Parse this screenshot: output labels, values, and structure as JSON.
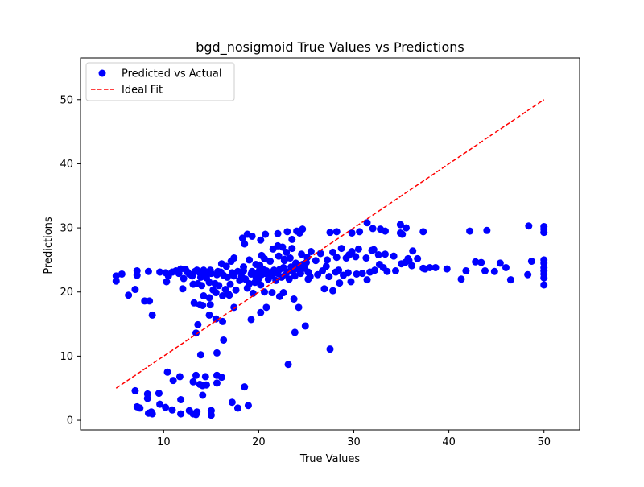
{
  "chart_data": {
    "type": "scatter",
    "title": "bgd_nosigmoid True Values vs Predictions",
    "xlabel": "True Values",
    "ylabel": "Predictions",
    "xlim": [
      1.25,
      53.75
    ],
    "ylim": [
      -1.5,
      56.5
    ],
    "xticks": [
      "10",
      "20",
      "30",
      "40",
      "50"
    ],
    "yticks": [
      "0",
      "10",
      "20",
      "30",
      "40",
      "50"
    ],
    "grid": false,
    "legend_position": "upper-left",
    "series": [
      {
        "name": "Predicted vs Actual",
        "type": "scatter",
        "color": "#0000ff",
        "points": [
          [
            5,
            22.5
          ],
          [
            5,
            21.7
          ],
          [
            5.6,
            22.8
          ],
          [
            6.3,
            19.5
          ],
          [
            7,
            20.4
          ],
          [
            7.2,
            23.3
          ],
          [
            7.2,
            22.6
          ],
          [
            8,
            18.6
          ],
          [
            8.4,
            23.2
          ],
          [
            8.5,
            18.6
          ],
          [
            8.8,
            16.4
          ],
          [
            7,
            4.6
          ],
          [
            7.2,
            2.1
          ],
          [
            7.5,
            1.9
          ],
          [
            8.3,
            4.1
          ],
          [
            8.3,
            3.4
          ],
          [
            8.4,
            1.1
          ],
          [
            8.7,
            1.3
          ],
          [
            8.8,
            1.0
          ],
          [
            9.5,
            4.2
          ],
          [
            9.6,
            2.5
          ],
          [
            10.2,
            2.0
          ],
          [
            10.4,
            7.5
          ],
          [
            10.9,
            1.6
          ],
          [
            11,
            6.2
          ],
          [
            11.7,
            6.8
          ],
          [
            11.8,
            1.0
          ],
          [
            11.8,
            3.2
          ],
          [
            12.7,
            1.5
          ],
          [
            13.1,
            6.0
          ],
          [
            13.1,
            1.0
          ],
          [
            13.4,
            7.0
          ],
          [
            13.4,
            0.9
          ],
          [
            13.5,
            1.3
          ],
          [
            13.8,
            5.6
          ],
          [
            14.1,
            3.9
          ],
          [
            14.1,
            5.4
          ],
          [
            14.4,
            6.8
          ],
          [
            14.5,
            5.5
          ],
          [
            15,
            1.5
          ],
          [
            15,
            0.8
          ],
          [
            15.6,
            5.8
          ],
          [
            15.6,
            7.0
          ],
          [
            16.1,
            6.7
          ],
          [
            17.2,
            2.8
          ],
          [
            17.8,
            1.9
          ],
          [
            18.5,
            5.2
          ],
          [
            18.9,
            2.3
          ],
          [
            9.6,
            23.1
          ],
          [
            10.2,
            23.0
          ],
          [
            10.3,
            21.6
          ],
          [
            10.5,
            22.5
          ],
          [
            10.9,
            23.1
          ],
          [
            11.3,
            23.3
          ],
          [
            11.6,
            22.9
          ],
          [
            11.8,
            23.6
          ],
          [
            12,
            20.5
          ],
          [
            12.1,
            22.1
          ],
          [
            12.3,
            23.5
          ],
          [
            12.5,
            23.1
          ],
          [
            12.7,
            22.8
          ],
          [
            13,
            22.5
          ],
          [
            13.1,
            21.2
          ],
          [
            13.3,
            23.2
          ],
          [
            13.5,
            23.4
          ],
          [
            13.6,
            21.3
          ],
          [
            13.8,
            23.0
          ],
          [
            13.9,
            22.3
          ],
          [
            14,
            21.0
          ],
          [
            14.2,
            23.4
          ],
          [
            14.4,
            23.0
          ],
          [
            14.5,
            22.2
          ],
          [
            14.8,
            21.5
          ],
          [
            14.9,
            23.4
          ],
          [
            15,
            22.9
          ],
          [
            15.2,
            20.3
          ],
          [
            15.4,
            21.3
          ],
          [
            15.6,
            22.7
          ],
          [
            15.7,
            23.2
          ],
          [
            15.8,
            21.0
          ],
          [
            16,
            23.1
          ],
          [
            16.3,
            22.6
          ],
          [
            16.5,
            20.4
          ],
          [
            16.7,
            22.3
          ],
          [
            17,
            21.2
          ],
          [
            17.2,
            23.0
          ],
          [
            17.4,
            22.5
          ],
          [
            17.6,
            20.3
          ],
          [
            17.8,
            23.2
          ],
          [
            18,
            21.8
          ],
          [
            18.2,
            22.4
          ],
          [
            18.4,
            23.3
          ],
          [
            18.6,
            22.0
          ],
          [
            18.8,
            20.6
          ],
          [
            19,
            21.3
          ],
          [
            19.2,
            22.8
          ],
          [
            19.3,
            23.2
          ],
          [
            19.4,
            19.8
          ],
          [
            19.6,
            21.5
          ],
          [
            19.7,
            22.4
          ],
          [
            19.9,
            23.0
          ],
          [
            20,
            22.1
          ],
          [
            20.1,
            23.5
          ],
          [
            20.2,
            21.1
          ],
          [
            20.3,
            22.7
          ],
          [
            20.4,
            23.6
          ],
          [
            20.6,
            20.0
          ],
          [
            20.7,
            22.9
          ],
          [
            20.8,
            23.3
          ],
          [
            21,
            22.0
          ],
          [
            21.2,
            23.0
          ],
          [
            21.4,
            22.5
          ],
          [
            21.6,
            23.4
          ],
          [
            21.8,
            21.8
          ],
          [
            22,
            22.9
          ],
          [
            22.2,
            23.5
          ],
          [
            22.4,
            22.3
          ],
          [
            22.6,
            23.8
          ],
          [
            22.8,
            22.7
          ],
          [
            23,
            23.1
          ],
          [
            23.2,
            22.0
          ],
          [
            23.4,
            23.9
          ],
          [
            23.6,
            23.3
          ],
          [
            23.8,
            22.5
          ],
          [
            24,
            24.0
          ],
          [
            24.2,
            23.5
          ],
          [
            24.4,
            22.9
          ],
          [
            24.6,
            24.3
          ],
          [
            24.8,
            23.7
          ],
          [
            25,
            24.6
          ],
          [
            25.2,
            23.1
          ],
          [
            25.4,
            22.4
          ],
          [
            14.2,
            19.4
          ],
          [
            14.1,
            17.9
          ],
          [
            14.8,
            19.1
          ],
          [
            14.9,
            18.0
          ],
          [
            15.5,
            19.9
          ],
          [
            16.2,
            19.4
          ],
          [
            16.9,
            19.5
          ],
          [
            17.4,
            17.6
          ],
          [
            13.2,
            18.3
          ],
          [
            13.8,
            18.0
          ],
          [
            13.6,
            14.9
          ],
          [
            13.4,
            13.6
          ],
          [
            13.9,
            10.2
          ],
          [
            14.8,
            16.4
          ],
          [
            15.5,
            15.8
          ],
          [
            15.6,
            10.5
          ],
          [
            16.2,
            15.4
          ],
          [
            16.3,
            12.5
          ],
          [
            16.8,
            19.7
          ],
          [
            19.2,
            15.7
          ],
          [
            20.2,
            16.8
          ],
          [
            20.8,
            17.6
          ],
          [
            21.4,
            19.9
          ],
          [
            22.2,
            19.3
          ],
          [
            22.6,
            19.9
          ],
          [
            23.7,
            18.9
          ],
          [
            24.2,
            17.6
          ],
          [
            23.8,
            13.7
          ],
          [
            24.9,
            14.7
          ],
          [
            23.1,
            8.7
          ],
          [
            27.5,
            11.1
          ],
          [
            16.1,
            24.4
          ],
          [
            16.6,
            24.0
          ],
          [
            17.1,
            24.8
          ],
          [
            17.4,
            25.3
          ],
          [
            18.4,
            23.9
          ],
          [
            19,
            25.0
          ],
          [
            19.7,
            24.3
          ],
          [
            20.3,
            25.7
          ],
          [
            20.6,
            25.2
          ],
          [
            21.2,
            24.8
          ],
          [
            22.1,
            25.6
          ],
          [
            22.7,
            24.9
          ],
          [
            23.3,
            25.3
          ],
          [
            23.5,
            26.8
          ],
          [
            23.9,
            24.5
          ],
          [
            24.5,
            25.9
          ],
          [
            25.1,
            25.4
          ],
          [
            25.5,
            26.3
          ],
          [
            22,
            27.2
          ],
          [
            22.5,
            27.0
          ],
          [
            22.9,
            26.2
          ],
          [
            21.5,
            26.7
          ],
          [
            18.3,
            28.4
          ],
          [
            18.5,
            27.5
          ],
          [
            18.8,
            29.0
          ],
          [
            19.3,
            28.7
          ],
          [
            20.2,
            28.1
          ],
          [
            20.7,
            29.0
          ],
          [
            22,
            29.1
          ],
          [
            23,
            29.4
          ],
          [
            23.5,
            28.2
          ],
          [
            24,
            29.5
          ],
          [
            24.3,
            29.2
          ],
          [
            24.6,
            29.8
          ],
          [
            22.7,
            25.1
          ],
          [
            20.1,
            24.2
          ],
          [
            25.2,
            22.0
          ],
          [
            26.2,
            22.7
          ],
          [
            26.7,
            23.3
          ],
          [
            27.1,
            24.0
          ],
          [
            27.4,
            22.4
          ],
          [
            27.8,
            20.2
          ],
          [
            28.1,
            23.1
          ],
          [
            28.5,
            21.4
          ],
          [
            28.9,
            22.6
          ],
          [
            29.4,
            23.0
          ],
          [
            29.7,
            21.6
          ],
          [
            30.3,
            22.8
          ],
          [
            30.9,
            22.9
          ],
          [
            31.4,
            21.9
          ],
          [
            31.7,
            23.1
          ],
          [
            32.2,
            23.4
          ],
          [
            32.7,
            24.3
          ],
          [
            33.1,
            23.8
          ],
          [
            33.5,
            23.2
          ],
          [
            34.4,
            23.3
          ],
          [
            35,
            24.4
          ],
          [
            35.4,
            24.6
          ],
          [
            35.8,
            24.9
          ],
          [
            26,
            24.9
          ],
          [
            26.5,
            26.0
          ],
          [
            27.2,
            25.0
          ],
          [
            27.8,
            26.2
          ],
          [
            28.2,
            25.4
          ],
          [
            28.7,
            26.8
          ],
          [
            29.2,
            25.3
          ],
          [
            29.8,
            26.3
          ],
          [
            30.2,
            25.5
          ],
          [
            30.5,
            26.7
          ],
          [
            31.3,
            25.3
          ],
          [
            31.9,
            26.5
          ],
          [
            32.6,
            25.8
          ],
          [
            33.3,
            25.9
          ],
          [
            34.2,
            25.6
          ],
          [
            35.7,
            25.2
          ],
          [
            36.2,
            26.4
          ],
          [
            36.7,
            25.2
          ],
          [
            37.5,
            23.6
          ],
          [
            38,
            23.8
          ],
          [
            38.6,
            23.8
          ],
          [
            39.8,
            23.6
          ],
          [
            27.5,
            29.3
          ],
          [
            28.2,
            29.4
          ],
          [
            29.8,
            29.2
          ],
          [
            30.6,
            29.4
          ],
          [
            31.4,
            30.8
          ],
          [
            32,
            29.9
          ],
          [
            32.8,
            29.8
          ],
          [
            33.3,
            29.5
          ],
          [
            34.9,
            29.2
          ],
          [
            35.1,
            29.0
          ],
          [
            35.5,
            30.0
          ],
          [
            34.9,
            30.5
          ],
          [
            37.3,
            29.4
          ],
          [
            36.1,
            24.1
          ],
          [
            37.3,
            23.7
          ],
          [
            32.1,
            26.6
          ],
          [
            29.5,
            25.8
          ],
          [
            26.9,
            20.5
          ],
          [
            28.4,
            23.4
          ],
          [
            41.3,
            22.0
          ],
          [
            41.8,
            23.3
          ],
          [
            42.2,
            29.5
          ],
          [
            42.8,
            24.7
          ],
          [
            43.4,
            24.6
          ],
          [
            43.8,
            23.3
          ],
          [
            44,
            29.6
          ],
          [
            44.8,
            23.2
          ],
          [
            45.4,
            24.5
          ],
          [
            46,
            23.8
          ],
          [
            46.5,
            21.9
          ],
          [
            48.3,
            22.7
          ],
          [
            48.4,
            30.3
          ],
          [
            48.7,
            24.8
          ],
          [
            50,
            21.1
          ],
          [
            50,
            22.2
          ],
          [
            50,
            22.8
          ],
          [
            50,
            23.3
          ],
          [
            50,
            23.8
          ],
          [
            50,
            24.5
          ],
          [
            50,
            25.0
          ],
          [
            50,
            29.3
          ],
          [
            50,
            29.8
          ],
          [
            50,
            30.2
          ]
        ]
      },
      {
        "name": "Ideal Fit",
        "type": "line",
        "color": "#ff0000",
        "style": "dashed",
        "x": [
          5,
          50
        ],
        "y": [
          5,
          50
        ]
      }
    ]
  }
}
